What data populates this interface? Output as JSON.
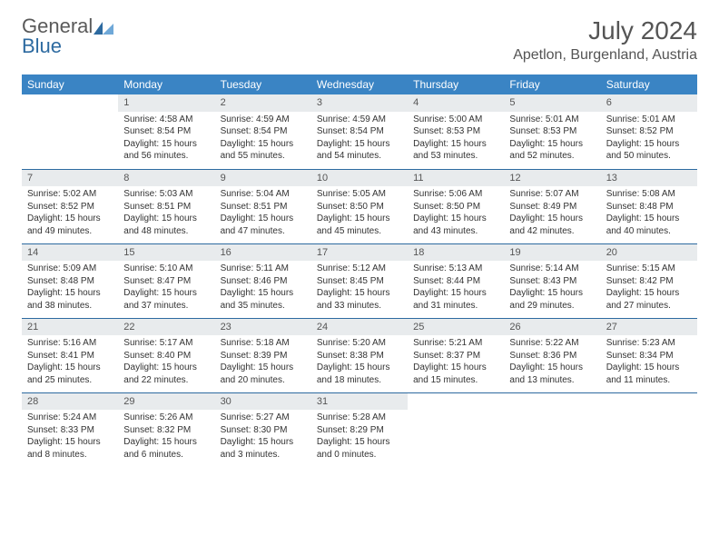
{
  "brand": {
    "word1": "General",
    "word2": "Blue"
  },
  "title": "July 2024",
  "location": "Apetlon, Burgenland, Austria",
  "colors": {
    "header_bg": "#3a84c4",
    "rule": "#2d6aa0",
    "daynum_bg": "#e8ebed",
    "text": "#333333",
    "brand_gray": "#5a5a5a",
    "brand_blue": "#2d6aa0"
  },
  "day_headers": [
    "Sunday",
    "Monday",
    "Tuesday",
    "Wednesday",
    "Thursday",
    "Friday",
    "Saturday"
  ],
  "first_day_col": 1,
  "num_days": 31,
  "days": [
    {
      "n": 1,
      "sr": "4:58 AM",
      "ss": "8:54 PM",
      "dl": "15 hours and 56 minutes."
    },
    {
      "n": 2,
      "sr": "4:59 AM",
      "ss": "8:54 PM",
      "dl": "15 hours and 55 minutes."
    },
    {
      "n": 3,
      "sr": "4:59 AM",
      "ss": "8:54 PM",
      "dl": "15 hours and 54 minutes."
    },
    {
      "n": 4,
      "sr": "5:00 AM",
      "ss": "8:53 PM",
      "dl": "15 hours and 53 minutes."
    },
    {
      "n": 5,
      "sr": "5:01 AM",
      "ss": "8:53 PM",
      "dl": "15 hours and 52 minutes."
    },
    {
      "n": 6,
      "sr": "5:01 AM",
      "ss": "8:52 PM",
      "dl": "15 hours and 50 minutes."
    },
    {
      "n": 7,
      "sr": "5:02 AM",
      "ss": "8:52 PM",
      "dl": "15 hours and 49 minutes."
    },
    {
      "n": 8,
      "sr": "5:03 AM",
      "ss": "8:51 PM",
      "dl": "15 hours and 48 minutes."
    },
    {
      "n": 9,
      "sr": "5:04 AM",
      "ss": "8:51 PM",
      "dl": "15 hours and 47 minutes."
    },
    {
      "n": 10,
      "sr": "5:05 AM",
      "ss": "8:50 PM",
      "dl": "15 hours and 45 minutes."
    },
    {
      "n": 11,
      "sr": "5:06 AM",
      "ss": "8:50 PM",
      "dl": "15 hours and 43 minutes."
    },
    {
      "n": 12,
      "sr": "5:07 AM",
      "ss": "8:49 PM",
      "dl": "15 hours and 42 minutes."
    },
    {
      "n": 13,
      "sr": "5:08 AM",
      "ss": "8:48 PM",
      "dl": "15 hours and 40 minutes."
    },
    {
      "n": 14,
      "sr": "5:09 AM",
      "ss": "8:48 PM",
      "dl": "15 hours and 38 minutes."
    },
    {
      "n": 15,
      "sr": "5:10 AM",
      "ss": "8:47 PM",
      "dl": "15 hours and 37 minutes."
    },
    {
      "n": 16,
      "sr": "5:11 AM",
      "ss": "8:46 PM",
      "dl": "15 hours and 35 minutes."
    },
    {
      "n": 17,
      "sr": "5:12 AM",
      "ss": "8:45 PM",
      "dl": "15 hours and 33 minutes."
    },
    {
      "n": 18,
      "sr": "5:13 AM",
      "ss": "8:44 PM",
      "dl": "15 hours and 31 minutes."
    },
    {
      "n": 19,
      "sr": "5:14 AM",
      "ss": "8:43 PM",
      "dl": "15 hours and 29 minutes."
    },
    {
      "n": 20,
      "sr": "5:15 AM",
      "ss": "8:42 PM",
      "dl": "15 hours and 27 minutes."
    },
    {
      "n": 21,
      "sr": "5:16 AM",
      "ss": "8:41 PM",
      "dl": "15 hours and 25 minutes."
    },
    {
      "n": 22,
      "sr": "5:17 AM",
      "ss": "8:40 PM",
      "dl": "15 hours and 22 minutes."
    },
    {
      "n": 23,
      "sr": "5:18 AM",
      "ss": "8:39 PM",
      "dl": "15 hours and 20 minutes."
    },
    {
      "n": 24,
      "sr": "5:20 AM",
      "ss": "8:38 PM",
      "dl": "15 hours and 18 minutes."
    },
    {
      "n": 25,
      "sr": "5:21 AM",
      "ss": "8:37 PM",
      "dl": "15 hours and 15 minutes."
    },
    {
      "n": 26,
      "sr": "5:22 AM",
      "ss": "8:36 PM",
      "dl": "15 hours and 13 minutes."
    },
    {
      "n": 27,
      "sr": "5:23 AM",
      "ss": "8:34 PM",
      "dl": "15 hours and 11 minutes."
    },
    {
      "n": 28,
      "sr": "5:24 AM",
      "ss": "8:33 PM",
      "dl": "15 hours and 8 minutes."
    },
    {
      "n": 29,
      "sr": "5:26 AM",
      "ss": "8:32 PM",
      "dl": "15 hours and 6 minutes."
    },
    {
      "n": 30,
      "sr": "5:27 AM",
      "ss": "8:30 PM",
      "dl": "15 hours and 3 minutes."
    },
    {
      "n": 31,
      "sr": "5:28 AM",
      "ss": "8:29 PM",
      "dl": "15 hours and 0 minutes."
    }
  ],
  "labels": {
    "sunrise": "Sunrise:",
    "sunset": "Sunset:",
    "daylight": "Daylight:"
  }
}
